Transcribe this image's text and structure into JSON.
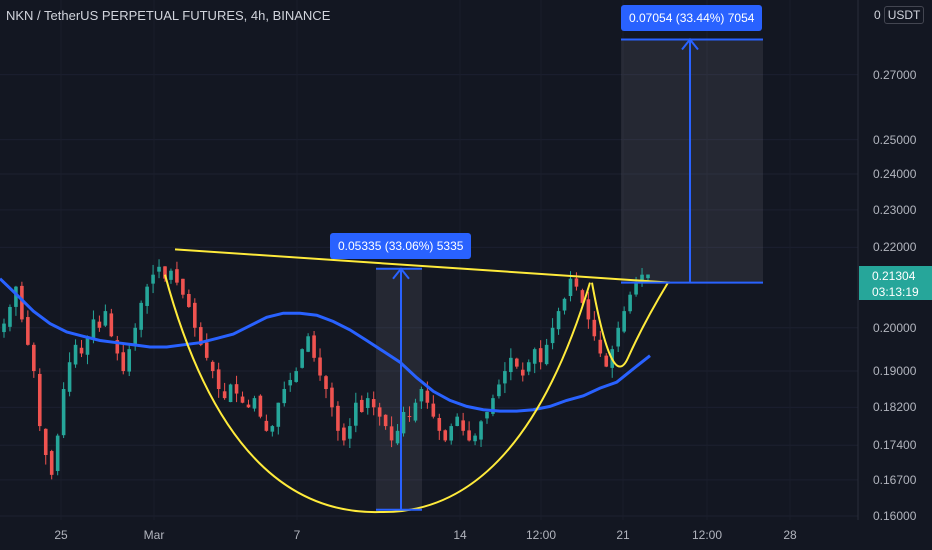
{
  "header": {
    "title": "NKN / TetherUS PERPETUAL FUTURES, 4h, BINANCE",
    "currency_prefix": "0",
    "currency": "USDT"
  },
  "colors": {
    "background": "#131722",
    "up": "#26a69a",
    "down": "#ef5350",
    "ma_line": "#2962ff",
    "pattern_line": "#ffeb3b",
    "measure": "#2962ff"
  },
  "last_price": {
    "value": "0.21304",
    "countdown": "03:13:19"
  },
  "measures": [
    {
      "label": "0.05335 (33.06%) 5335",
      "from": 0.1612,
      "to": 0.2145
    },
    {
      "label": "0.07054 (33.44%) 7054",
      "from": 0.211,
      "to": 0.2815
    }
  ],
  "chart_data": {
    "type": "candlestick",
    "title": "NKN / TetherUS PERPETUAL FUTURES, 4h, BINANCE",
    "y_scale": "log",
    "ylim": [
      0.16,
      0.295
    ],
    "y_ticks": [
      "0.27000",
      "0.25000",
      "0.24000",
      "0.23000",
      "0.22000",
      "0.20000",
      "0.19000",
      "0.18200",
      "0.17400",
      "0.16700",
      "0.16000"
    ],
    "x_ticks": [
      "25",
      "Mar",
      "7",
      "14",
      "12:00",
      "21",
      "12:00",
      "28"
    ],
    "series": [
      {
        "name": "price",
        "close": [
          0.201,
          0.205,
          0.21,
          0.202,
          0.196,
          0.19,
          0.178,
          0.172,
          0.168,
          0.176,
          0.186,
          0.192,
          0.196,
          0.194,
          0.198,
          0.202,
          0.2,
          0.204,
          0.198,
          0.194,
          0.19,
          0.195,
          0.2,
          0.206,
          0.21,
          0.213,
          0.215,
          0.212,
          0.214,
          0.211,
          0.208,
          0.205,
          0.2,
          0.196,
          0.193,
          0.19,
          0.186,
          0.184,
          0.187,
          0.185,
          0.183,
          0.182,
          0.184,
          0.18,
          0.177,
          0.178,
          0.183,
          0.186,
          0.188,
          0.19,
          0.195,
          0.198,
          0.193,
          0.189,
          0.186,
          0.182,
          0.177,
          0.175,
          0.178,
          0.183,
          0.181,
          0.184,
          0.182,
          0.18,
          0.178,
          0.175,
          0.177,
          0.181,
          0.18,
          0.183,
          0.186,
          0.183,
          0.18,
          0.177,
          0.175,
          0.178,
          0.18,
          0.177,
          0.175,
          0.176,
          0.179,
          0.181,
          0.184,
          0.187,
          0.19,
          0.193,
          0.191,
          0.189,
          0.192,
          0.195,
          0.192,
          0.196,
          0.2,
          0.204,
          0.207,
          0.212,
          0.21,
          0.206,
          0.202,
          0.198,
          0.194,
          0.191,
          0.195,
          0.2,
          0.204,
          0.208,
          0.211,
          0.213,
          0.21304
        ]
      },
      {
        "name": "moving average",
        "values": [
          0.212,
          0.208,
          0.204,
          0.201,
          0.199,
          0.198,
          0.197,
          0.1965,
          0.196,
          0.1955,
          0.1955,
          0.196,
          0.1965,
          0.1975,
          0.1985,
          0.2005,
          0.2025,
          0.2035,
          0.2035,
          0.203,
          0.2015,
          0.1995,
          0.197,
          0.1945,
          0.192,
          0.1885,
          0.1855,
          0.1835,
          0.1822,
          0.1815,
          0.1812,
          0.1812,
          0.1815,
          0.1822,
          0.1835,
          0.1845,
          0.1862,
          0.1875,
          0.1905,
          0.1935
        ]
      }
    ]
  }
}
